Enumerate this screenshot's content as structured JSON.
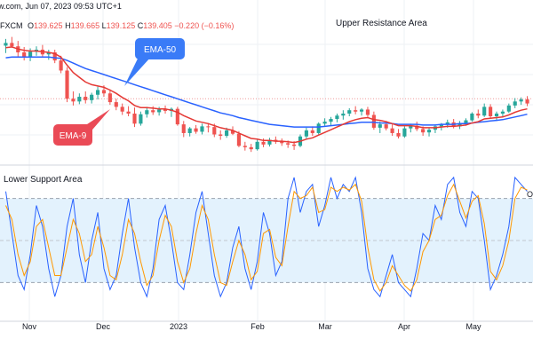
{
  "header": {
    "source": "w.com, Jun 07, 2023 09:53 UTC+1",
    "symbol": "FXCM",
    "open_label": "O",
    "open": "139.625",
    "high_label": "H",
    "high": "139.665",
    "low_label": "L",
    "low": "139.125",
    "close_label": "C",
    "close": "139.405",
    "change": "−0.220 (−0.16%)"
  },
  "annotations": {
    "upper_resistance": "Upper Resistance Area",
    "lower_support": "Lower Support Area",
    "ema50": "EMA-50",
    "ema9": "EMA-9",
    "osc_edge": "O"
  },
  "colors": {
    "bull": "#26a69a",
    "bear": "#ef5350",
    "ema9": "#e53935",
    "ema50": "#2962ff",
    "stoch_k": "#2962ff",
    "stoch_d": "#ff9800",
    "callout_blue": "#3a7bf7",
    "callout_red": "#ea4a56",
    "band": "#e3f2fd",
    "resistance_line": "#ef9a9a"
  },
  "chart_data": [
    {
      "type": "candlestick",
      "title": "",
      "x_ticks": [
        "Nov",
        "Dec",
        "2023",
        "Feb",
        "Mar",
        "Apr",
        "May"
      ],
      "resistance_level": 135.3,
      "candles": [
        [
          143.2,
          144.2,
          142.1,
          143.6
        ],
        [
          143.6,
          144.5,
          142.9,
          143.1
        ],
        [
          143.1,
          143.9,
          141.6,
          142.2
        ],
        [
          142.2,
          143.0,
          141.0,
          141.6
        ],
        [
          141.6,
          142.8,
          140.9,
          142.3
        ],
        [
          142.3,
          143.1,
          141.7,
          142.6
        ],
        [
          142.6,
          143.3,
          141.5,
          141.9
        ],
        [
          141.9,
          142.6,
          141.1,
          142.2
        ],
        [
          142.2,
          142.6,
          140.6,
          141.0
        ],
        [
          141.0,
          141.7,
          139.1,
          139.5
        ],
        [
          139.5,
          140.0,
          134.8,
          135.3
        ],
        [
          135.3,
          136.4,
          134.3,
          134.9
        ],
        [
          134.9,
          136.1,
          134.5,
          135.6
        ],
        [
          135.6,
          136.4,
          134.6,
          135.1
        ],
        [
          135.1,
          136.2,
          134.6,
          135.9
        ],
        [
          135.9,
          137.1,
          135.2,
          136.6
        ],
        [
          136.6,
          137.3,
          135.6,
          136.1
        ],
        [
          136.1,
          136.7,
          134.4,
          134.8
        ],
        [
          134.8,
          135.3,
          133.6,
          134.1
        ],
        [
          134.1,
          134.6,
          132.9,
          133.4
        ],
        [
          133.4,
          134.2,
          132.7,
          133.1
        ],
        [
          133.1,
          134.0,
          131.1,
          131.6
        ],
        [
          131.6,
          133.4,
          131.3,
          133.0
        ],
        [
          133.0,
          134.1,
          132.5,
          133.6
        ],
        [
          133.6,
          134.2,
          132.9,
          133.3
        ],
        [
          133.3,
          134.1,
          132.8,
          133.7
        ],
        [
          133.7,
          134.3,
          133.1,
          133.5
        ],
        [
          133.5,
          134.0,
          132.6,
          133.8
        ],
        [
          133.8,
          134.1,
          131.3,
          131.5
        ],
        [
          131.5,
          132.0,
          129.6,
          130.2
        ],
        [
          130.2,
          131.1,
          129.7,
          130.9
        ],
        [
          130.9,
          131.4,
          130.1,
          130.4
        ],
        [
          130.4,
          131.6,
          130.0,
          131.2
        ],
        [
          131.2,
          131.7,
          130.3,
          131.1
        ],
        [
          131.1,
          131.6,
          129.6,
          130.0
        ],
        [
          130.0,
          130.6,
          129.2,
          129.8
        ],
        [
          129.8,
          131.0,
          129.5,
          130.6
        ],
        [
          130.6,
          131.2,
          129.9,
          130.1
        ],
        [
          130.1,
          130.5,
          128.1,
          128.3
        ],
        [
          128.3,
          128.9,
          127.6,
          128.1
        ],
        [
          128.1,
          128.6,
          127.4,
          127.8
        ],
        [
          127.8,
          129.2,
          127.6,
          128.9
        ],
        [
          128.9,
          129.4,
          128.1,
          128.5
        ],
        [
          128.5,
          129.5,
          128.2,
          129.2
        ],
        [
          129.2,
          129.7,
          128.6,
          129.0
        ],
        [
          129.0,
          129.4,
          128.3,
          128.7
        ],
        [
          128.7,
          129.1,
          128.0,
          128.5
        ],
        [
          128.5,
          129.0,
          127.7,
          128.3
        ],
        [
          128.3,
          130.0,
          128.1,
          129.7
        ],
        [
          129.7,
          131.0,
          129.4,
          130.6
        ],
        [
          130.6,
          131.2,
          129.8,
          130.2
        ],
        [
          130.2,
          131.8,
          130.0,
          131.6
        ],
        [
          131.6,
          132.4,
          131.2,
          131.9
        ],
        [
          131.9,
          132.6,
          131.3,
          132.3
        ],
        [
          132.3,
          133.1,
          131.8,
          132.8
        ],
        [
          132.8,
          133.6,
          132.2,
          133.1
        ],
        [
          133.1,
          133.9,
          132.7,
          133.6
        ],
        [
          133.6,
          134.2,
          133.0,
          133.4
        ],
        [
          133.4,
          133.9,
          132.8,
          133.7
        ],
        [
          133.7,
          134.1,
          132.6,
          132.9
        ],
        [
          132.9,
          133.4,
          130.7,
          131.0
        ],
        [
          131.0,
          131.9,
          130.2,
          131.5
        ],
        [
          131.5,
          132.0,
          130.6,
          130.9
        ],
        [
          130.9,
          131.5,
          129.8,
          130.2
        ],
        [
          130.2,
          130.8,
          129.4,
          129.7
        ],
        [
          129.7,
          131.2,
          129.5,
          130.9
        ],
        [
          130.9,
          131.6,
          130.3,
          131.3
        ],
        [
          131.3,
          131.9,
          130.5,
          130.8
        ],
        [
          130.8,
          131.2,
          129.8,
          130.3
        ],
        [
          130.3,
          131.0,
          129.7,
          130.7
        ],
        [
          130.7,
          131.5,
          130.2,
          131.2
        ],
        [
          131.2,
          131.7,
          130.6,
          131.5
        ],
        [
          131.5,
          132.2,
          131.0,
          131.8
        ],
        [
          131.8,
          132.3,
          130.9,
          131.2
        ],
        [
          131.2,
          132.0,
          130.8,
          131.7
        ],
        [
          131.7,
          132.4,
          131.3,
          132.1
        ],
        [
          132.1,
          133.3,
          131.9,
          133.1
        ],
        [
          133.1,
          133.7,
          132.4,
          132.8
        ],
        [
          132.8,
          134.6,
          132.6,
          134.1
        ],
        [
          134.1,
          134.5,
          132.4,
          132.7
        ],
        [
          132.7,
          133.4,
          132.0,
          133.1
        ],
        [
          133.1,
          133.7,
          132.6,
          133.4
        ],
        [
          133.4,
          134.6,
          133.2,
          134.3
        ],
        [
          134.3,
          135.4,
          133.9,
          134.9
        ],
        [
          134.9,
          135.5,
          134.4,
          135.2
        ],
        [
          135.2,
          135.7,
          134.2,
          134.6
        ]
      ],
      "ema9": [
        142.9,
        143.0,
        142.7,
        142.5,
        142.4,
        142.4,
        142.3,
        142.2,
        142.0,
        141.5,
        140.3,
        139.2,
        138.5,
        137.8,
        137.4,
        137.2,
        137.0,
        136.6,
        136.1,
        135.5,
        135.0,
        134.3,
        134.0,
        134.0,
        133.9,
        133.8,
        133.8,
        133.6,
        133.3,
        132.8,
        132.4,
        132.0,
        131.8,
        131.6,
        131.3,
        131.0,
        130.8,
        130.6,
        130.2,
        129.8,
        129.4,
        129.3,
        129.1,
        129.1,
        129.0,
        129.0,
        128.9,
        128.8,
        129.0,
        129.3,
        129.5,
        129.9,
        130.3,
        130.7,
        131.1,
        131.5,
        131.9,
        132.2,
        132.4,
        132.5,
        132.2,
        132.1,
        131.9,
        131.6,
        131.3,
        131.3,
        131.3,
        131.2,
        131.0,
        131.0,
        131.0,
        131.1,
        131.2,
        131.2,
        131.3,
        131.4,
        131.7,
        131.9,
        132.3,
        132.4,
        132.5,
        132.6,
        132.9,
        133.3,
        133.6,
        133.8
      ],
      "ema50": [
        141.4,
        141.5,
        141.5,
        141.5,
        141.5,
        141.5,
        141.5,
        141.5,
        141.4,
        141.3,
        141.0,
        140.6,
        140.2,
        139.8,
        139.5,
        139.2,
        138.9,
        138.6,
        138.3,
        138.0,
        137.7,
        137.4,
        137.1,
        136.8,
        136.5,
        136.2,
        135.9,
        135.6,
        135.3,
        135.0,
        134.7,
        134.4,
        134.1,
        133.8,
        133.5,
        133.2,
        133.0,
        132.8,
        132.5,
        132.3,
        132.1,
        131.9,
        131.7,
        131.5,
        131.4,
        131.3,
        131.2,
        131.1,
        131.1,
        131.1,
        131.1,
        131.1,
        131.2,
        131.3,
        131.4,
        131.5,
        131.6,
        131.7,
        131.8,
        131.8,
        131.8,
        131.7,
        131.7,
        131.6,
        131.5,
        131.5,
        131.5,
        131.5,
        131.4,
        131.4,
        131.4,
        131.5,
        131.5,
        131.5,
        131.6,
        131.6,
        131.7,
        131.8,
        131.9,
        132.0,
        132.1,
        132.2,
        132.4,
        132.6,
        132.8,
        133.0
      ]
    },
    {
      "type": "line",
      "title": "",
      "ylim": [
        0,
        100
      ],
      "band": [
        20,
        80
      ],
      "midline": 50,
      "series": [
        {
          "values": [
            85,
            55,
            25,
            15,
            40,
            75,
            60,
            30,
            10,
            25,
            60,
            80,
            40,
            20,
            50,
            70,
            30,
            15,
            25,
            55,
            80,
            45,
            20,
            10,
            30,
            65,
            75,
            50,
            20,
            15,
            40,
            70,
            85,
            55,
            25,
            10,
            20,
            45,
            60,
            30,
            15,
            35,
            70,
            55,
            25,
            35,
            80,
            95,
            70,
            85,
            90,
            60,
            75,
            95,
            80,
            90,
            85,
            95,
            70,
            30,
            15,
            10,
            25,
            40,
            20,
            15,
            10,
            30,
            55,
            50,
            75,
            65,
            90,
            95,
            70,
            60,
            85,
            80,
            50,
            15,
            25,
            40,
            60,
            95,
            90,
            85
          ]
        },
        {
          "values": [
            75,
            65,
            40,
            25,
            35,
            60,
            65,
            45,
            25,
            25,
            45,
            65,
            55,
            35,
            40,
            60,
            45,
            25,
            22,
            40,
            65,
            55,
            35,
            18,
            25,
            50,
            68,
            60,
            35,
            20,
            30,
            55,
            75,
            65,
            40,
            20,
            18,
            35,
            50,
            40,
            22,
            28,
            55,
            58,
            38,
            32,
            60,
            85,
            80,
            82,
            88,
            70,
            72,
            88,
            85,
            88,
            86,
            90,
            78,
            45,
            22,
            14,
            20,
            32,
            25,
            18,
            14,
            22,
            42,
            50,
            65,
            68,
            82,
            90,
            78,
            66,
            78,
            82,
            62,
            28,
            22,
            32,
            50,
            80,
            88,
            86
          ]
        }
      ]
    }
  ]
}
